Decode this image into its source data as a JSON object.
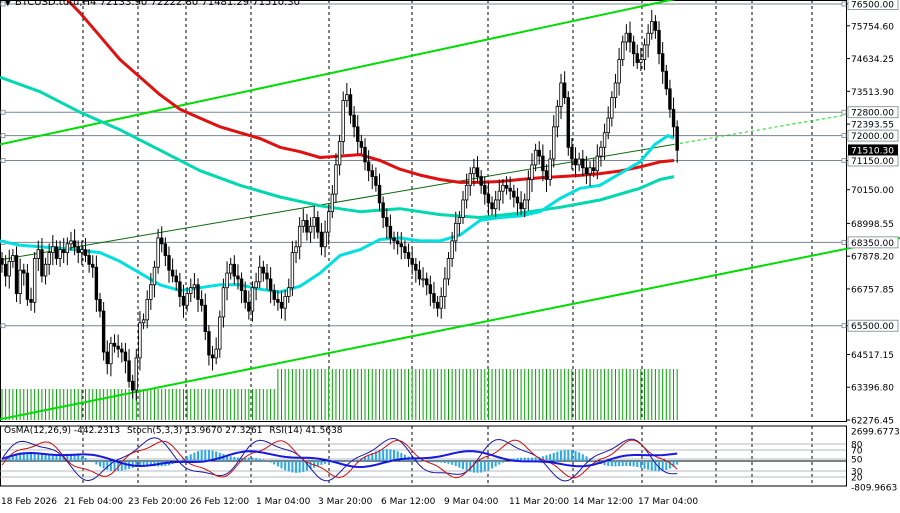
{
  "header": {
    "arrow": "▼",
    "symbol": "BTCUSD.tutu,H4",
    "ohlc": "72133.90 72222.80 71481.29 71510.30"
  },
  "osc_header": {
    "osma": "OsMA(12,26,9) -442.2313",
    "stoch": "Stoch(5,3,3) 13.9670 27.3261",
    "rsi": "RSI(14) 41.5638"
  },
  "colors": {
    "candle": "#000000",
    "volume": "#00a000",
    "trend_channel": "#00dd00",
    "ema_red": "#e01010",
    "ema_cyan": "#00e0e0",
    "ema_teal": "#00d8b0",
    "osma_hist": "#2aa8e6",
    "stoch_main": "#1a1aa6",
    "stoch_signal": "#cc1010",
    "rsi": "#1818e0",
    "hline": "#7a8590",
    "price_tag_bg": "#000000",
    "price_tag_text": "#ffffff"
  },
  "chart_data": {
    "type": "candlestick",
    "price_axis_labels": [
      "76500.00",
      "75754.60",
      "74634.25",
      "73513.90",
      "72393.55",
      "71150.00",
      "70150.00",
      "68998.55",
      "67878.20",
      "66757.85",
      "65500.00",
      "64517.15",
      "63396.80",
      "62276.45"
    ],
    "horizontal_levels": [
      {
        "price": 76500,
        "label": "76500.00",
        "tagged": true
      },
      {
        "price": 72800,
        "label": "72800.00",
        "tagged": true
      },
      {
        "price": 72000,
        "label": "72000.00",
        "tagged": true
      },
      {
        "price": 71150,
        "label": "71150.00",
        "tagged": true
      },
      {
        "price": 68350,
        "label": "68350.00",
        "tagged": true
      },
      {
        "price": 65500,
        "label": "65500.00",
        "tagged": true
      }
    ],
    "current_price": {
      "price": 71510.3,
      "label": "71510.30"
    },
    "x_labels": [
      "18 Feb 2026",
      "21 Feb 04:00",
      "23 Feb 20:00",
      "26 Feb 12:00",
      "1 Mar 04:00",
      "3 Mar 20:00",
      "6 Mar 12:00",
      "9 Mar 04:00",
      "11 Mar 20:00",
      "14 Mar 12:00",
      "17 Mar 04:00"
    ],
    "candle_closes": [
      67600,
      67200,
      67700,
      67900,
      66600,
      67400,
      67300,
      66400,
      66300,
      67800,
      68100,
      67200,
      67600,
      68000,
      68200,
      67800,
      68100,
      68000,
      68300,
      68400,
      68200,
      68000,
      68100,
      67900,
      67600,
      67500,
      66400,
      66000,
      64600,
      64200,
      64900,
      64800,
      64700,
      64600,
      64300,
      63600,
      63300,
      64400,
      65600,
      65700,
      66400,
      66900,
      67500,
      68500,
      68300,
      67900,
      67400,
      67200,
      67000,
      66500,
      66200,
      66600,
      66800,
      66900,
      66400,
      66200,
      65300,
      64500,
      64400,
      64700,
      65800,
      66800,
      67300,
      67600,
      67200,
      67100,
      66700,
      66300,
      66000,
      66800,
      67000,
      67500,
      67300,
      67100,
      66700,
      66400,
      66300,
      66100,
      66500,
      66800,
      68000,
      68200,
      68900,
      69100,
      68700,
      68900,
      69200,
      68700,
      68200,
      68700,
      69400,
      70000,
      71000,
      71800,
      73200,
      73400,
      72700,
      72300,
      71800,
      71600,
      71100,
      70800,
      70600,
      70300,
      69700,
      69200,
      68900,
      68500,
      68400,
      68300,
      68200,
      68000,
      67800,
      67600,
      67400,
      67100,
      67100,
      66900,
      66600,
      66300,
      66100,
      66500,
      67100,
      67800,
      68400,
      69000,
      69200,
      69800,
      70300,
      70700,
      70900,
      70600,
      70300,
      70000,
      69700,
      69500,
      69800,
      70100,
      70300,
      70200,
      70100,
      69900,
      69700,
      69500,
      69800,
      70500,
      71000,
      71500,
      71300,
      70800,
      70500,
      71200,
      72300,
      73000,
      73800,
      73300,
      71600,
      71200,
      71000,
      71200,
      70900,
      70700,
      70900,
      70800,
      71300,
      71600,
      72100,
      72600,
      73300,
      73800,
      74600,
      75200,
      75500,
      75200,
      74800,
      74500,
      74600,
      75100,
      75500,
      75900,
      75600,
      74800,
      74200,
      73600,
      72900,
      72300,
      71500
    ],
    "ema_red_points": [
      [
        0,
        79000
      ],
      [
        20,
        78200
      ],
      [
        40,
        77600
      ],
      [
        60,
        76900
      ],
      [
        80,
        76200
      ],
      [
        100,
        75400
      ],
      [
        120,
        74600
      ],
      [
        140,
        74000
      ],
      [
        160,
        73400
      ],
      [
        180,
        72900
      ],
      [
        200,
        72600
      ],
      [
        220,
        72300
      ],
      [
        240,
        72100
      ],
      [
        260,
        71900
      ],
      [
        280,
        71600
      ],
      [
        300,
        71450
      ],
      [
        320,
        71250
      ],
      [
        340,
        71300
      ],
      [
        360,
        71350
      ],
      [
        380,
        71150
      ],
      [
        400,
        70850
      ],
      [
        420,
        70650
      ],
      [
        440,
        70500
      ],
      [
        460,
        70400
      ],
      [
        480,
        70400
      ],
      [
        500,
        70430
      ],
      [
        520,
        70500
      ],
      [
        540,
        70560
      ],
      [
        560,
        70600
      ],
      [
        580,
        70640
      ],
      [
        600,
        70700
      ],
      [
        620,
        70790
      ],
      [
        640,
        70930
      ],
      [
        660,
        71100
      ],
      [
        674,
        71150
      ]
    ],
    "ema_cyan_points": [
      [
        0,
        68400
      ],
      [
        20,
        68250
      ],
      [
        40,
        68200
      ],
      [
        60,
        68150
      ],
      [
        80,
        68080
      ],
      [
        100,
        68000
      ],
      [
        120,
        67700
      ],
      [
        140,
        67300
      ],
      [
        160,
        66900
      ],
      [
        180,
        66700
      ],
      [
        200,
        66800
      ],
      [
        220,
        66900
      ],
      [
        240,
        66900
      ],
      [
        260,
        66750
      ],
      [
        280,
        66650
      ],
      [
        300,
        66850
      ],
      [
        320,
        67300
      ],
      [
        340,
        67900
      ],
      [
        360,
        68100
      ],
      [
        380,
        68450
      ],
      [
        400,
        68500
      ],
      [
        420,
        68400
      ],
      [
        440,
        68400
      ],
      [
        460,
        68600
      ],
      [
        480,
        69100
      ],
      [
        500,
        69200
      ],
      [
        520,
        69250
      ],
      [
        540,
        69400
      ],
      [
        560,
        69850
      ],
      [
        580,
        70200
      ],
      [
        600,
        70300
      ],
      [
        620,
        70700
      ],
      [
        640,
        71100
      ],
      [
        655,
        71700
      ],
      [
        668,
        72000
      ],
      [
        674,
        71900
      ]
    ],
    "ema_teal_points": [
      [
        0,
        74000
      ],
      [
        40,
        73500
      ],
      [
        80,
        72800
      ],
      [
        120,
        72200
      ],
      [
        160,
        71500
      ],
      [
        200,
        70800
      ],
      [
        240,
        70300
      ],
      [
        280,
        69900
      ],
      [
        320,
        69600
      ],
      [
        360,
        69400
      ],
      [
        400,
        69500
      ],
      [
        440,
        69300
      ],
      [
        480,
        69200
      ],
      [
        520,
        69350
      ],
      [
        560,
        69550
      ],
      [
        600,
        69800
      ],
      [
        640,
        70200
      ],
      [
        660,
        70500
      ],
      [
        674,
        70600
      ]
    ],
    "trendline_upper": [
      [
        0,
        71700
      ],
      [
        720,
        77000
      ]
    ],
    "trendline_lower": [
      [
        0,
        62300
      ],
      [
        900,
        68500
      ]
    ],
    "trendline_mid": [
      [
        0,
        67750
      ],
      [
        674,
        71700
      ]
    ],
    "trendline_mid_dashed": [
      [
        674,
        71700
      ],
      [
        845,
        72700
      ]
    ],
    "volume_start_index": 76,
    "osc_axis_labels": [
      "2699.6773",
      "80",
      "70",
      "50",
      "30",
      "20",
      "-809.9663"
    ]
  }
}
